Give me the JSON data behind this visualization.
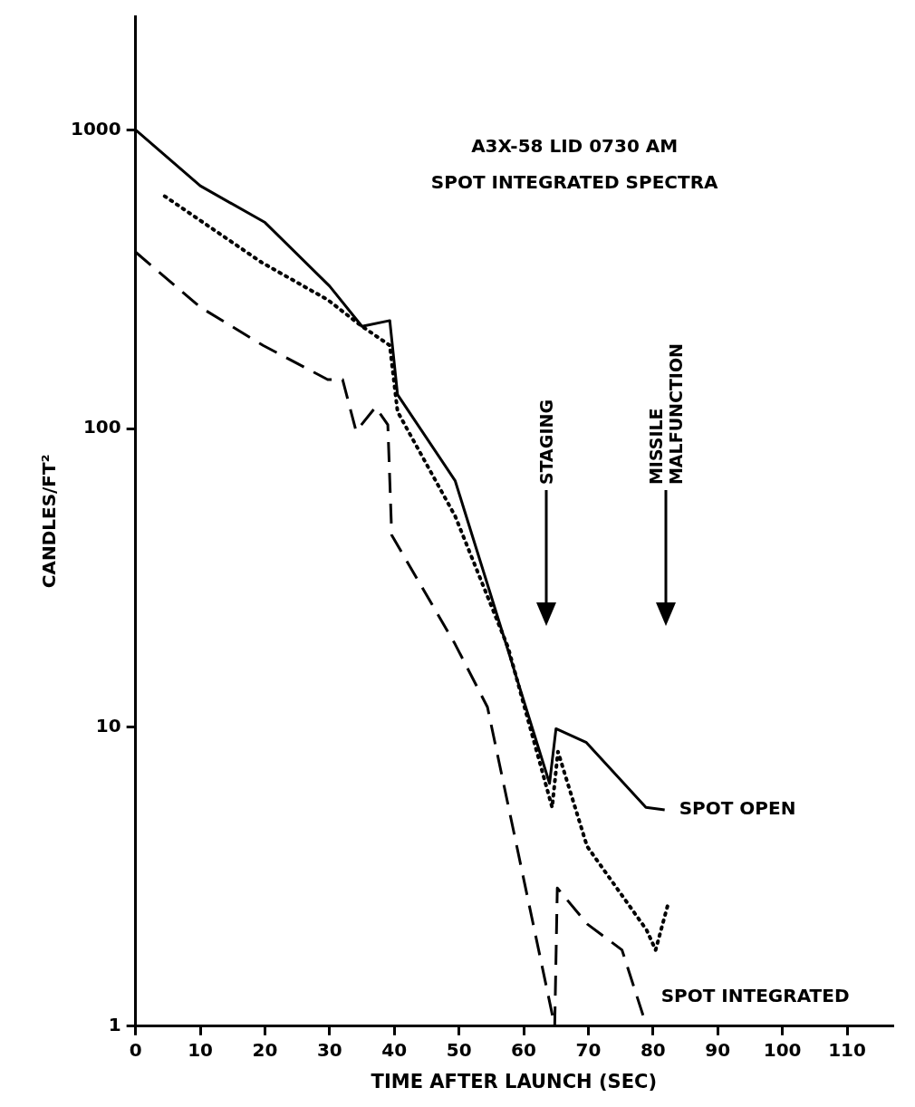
{
  "chart_data": {
    "type": "line",
    "title": "A3X-58 LID 0730 AM",
    "subtitle": "SPOT INTEGRATED SPECTRA",
    "xlabel": "TIME AFTER LAUNCH (SEC)",
    "ylabel": "CANDLES/FT²",
    "log": "y",
    "grid": false,
    "legend": false,
    "marker": "none",
    "xlim": [
      0,
      117
    ],
    "xticks": [
      0,
      10,
      20,
      30,
      40,
      50,
      60,
      70,
      80,
      90,
      100,
      110
    ],
    "ylim": [
      1,
      2400
    ],
    "yticks": [
      1,
      10,
      100,
      1000
    ],
    "series": [
      {
        "name": "SPOT OPEN",
        "color": "#000000",
        "line_style": "solid",
        "x": [
          0,
          10,
          20,
          30,
          35,
          39.3,
          40.5,
          49.4,
          64,
          65,
          69.7,
          78.9,
          81.8
        ],
        "values": [
          1000,
          650,
          490,
          300,
          220,
          230,
          130,
          67,
          6.5,
          9.9,
          8.9,
          5.4,
          5.3
        ]
      },
      {
        "color": "#000000",
        "line_style": "dotted",
        "x": [
          4.5,
          19.5,
          29.7,
          35,
          39.3,
          40.5,
          49.4,
          57.6,
          64.4,
          65.3,
          69.8,
          79,
          80.4,
          82.4
        ],
        "values": [
          600,
          360,
          270,
          220,
          190,
          114,
          51,
          18.5,
          5.4,
          8.3,
          4,
          2.1,
          1.8,
          2.6
        ]
      },
      {
        "name": "SPOT INTEGRATED",
        "color": "#000000",
        "line_style": "dashed",
        "x": [
          0,
          10,
          19.7,
          29.7,
          32,
          34.1,
          37.1,
          39,
          39.6,
          49.4,
          54.4,
          64.8,
          65.2,
          69.8,
          75.2,
          79
        ],
        "values": [
          390,
          255,
          190,
          146,
          146,
          98,
          118,
          103,
          44,
          19,
          11.7,
          1,
          2.9,
          2.2,
          1.8,
          1
        ]
      }
    ],
    "annotations": [
      "STAGING",
      "MISSILE\nMALFUNCTION"
    ]
  }
}
